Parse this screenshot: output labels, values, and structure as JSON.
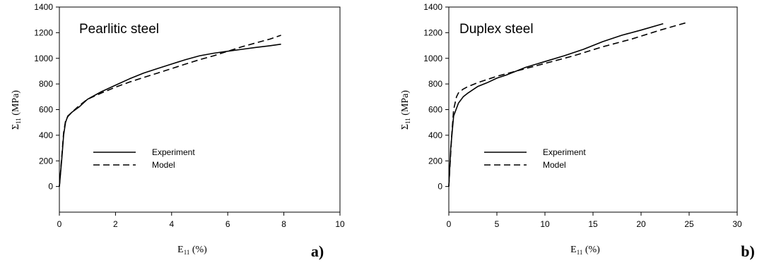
{
  "chart_data": [
    {
      "type": "line",
      "panel_label": "a)",
      "inset_title": "Pearlitic steel",
      "xlabel": {
        "main": "E",
        "sub": "11",
        "suffix": " (%)"
      },
      "ylabel": {
        "main": "Σ",
        "sub": "11",
        "suffix": " (MPa)"
      },
      "xlim": [
        0,
        10
      ],
      "ylim": [
        -200,
        1400
      ],
      "xticks": [
        "0",
        "2",
        "4",
        "6",
        "8",
        "10"
      ],
      "yticks": [
        "0",
        "200",
        "400",
        "600",
        "800",
        "1000",
        "1200",
        "1400"
      ],
      "legend_position": "lower-middle",
      "series": [
        {
          "name": "Experiment",
          "style": "solid",
          "x": [
            0,
            0.08,
            0.15,
            0.22,
            0.3,
            0.45,
            0.7,
            1.0,
            1.5,
            2.0,
            2.5,
            3.0,
            3.5,
            4.0,
            4.5,
            5.0,
            5.5,
            6.0,
            6.5,
            7.0,
            7.5,
            7.9
          ],
          "y": [
            0,
            200,
            400,
            500,
            550,
            580,
            620,
            680,
            740,
            790,
            840,
            885,
            920,
            955,
            990,
            1020,
            1040,
            1055,
            1070,
            1085,
            1098,
            1110
          ]
        },
        {
          "name": "Model",
          "style": "dashed",
          "x": [
            0,
            0.08,
            0.15,
            0.22,
            0.3,
            0.45,
            0.7,
            1.0,
            1.5,
            2.0,
            2.5,
            3.0,
            3.5,
            4.0,
            4.5,
            5.0,
            5.5,
            6.0,
            6.5,
            7.0,
            7.5,
            7.9
          ],
          "y": [
            0,
            220,
            420,
            510,
            545,
            580,
            630,
            680,
            730,
            775,
            815,
            850,
            885,
            920,
            955,
            990,
            1020,
            1055,
            1090,
            1120,
            1150,
            1180
          ]
        }
      ]
    },
    {
      "type": "line",
      "panel_label": "b)",
      "inset_title": "Duplex steel",
      "xlabel": {
        "main": "E",
        "sub": "11",
        "suffix": " (%)"
      },
      "ylabel": {
        "main": "Σ",
        "sub": "11",
        "suffix": " (MPa)"
      },
      "xlim": [
        0,
        30
      ],
      "ylim": [
        -200,
        1400
      ],
      "xticks": [
        "0",
        "5",
        "10",
        "15",
        "20",
        "25",
        "30"
      ],
      "yticks": [
        "0",
        "200",
        "400",
        "600",
        "800",
        "1000",
        "1200",
        "1400"
      ],
      "legend_position": "lower-middle",
      "series": [
        {
          "name": "Experiment",
          "style": "solid",
          "x": [
            0,
            0.2,
            0.5,
            1.0,
            1.5,
            2.0,
            3.0,
            4.0,
            5.0,
            6.0,
            8.0,
            10.0,
            12.0,
            14.0,
            16.0,
            18.0,
            20.0,
            22.3
          ],
          "y": [
            0,
            300,
            550,
            650,
            700,
            730,
            780,
            810,
            845,
            870,
            930,
            975,
            1020,
            1070,
            1130,
            1180,
            1220,
            1270
          ]
        },
        {
          "name": "Model",
          "style": "dashed",
          "x": [
            0,
            0.3,
            0.5,
            0.8,
            1.0,
            1.5,
            2.0,
            3.0,
            5.0,
            7.0,
            10.0,
            13.0,
            16.0,
            19.0,
            22.0,
            24.8
          ],
          "y": [
            0,
            400,
            600,
            700,
            730,
            760,
            780,
            810,
            860,
            900,
            960,
            1020,
            1090,
            1150,
            1220,
            1280
          ]
        }
      ]
    }
  ]
}
